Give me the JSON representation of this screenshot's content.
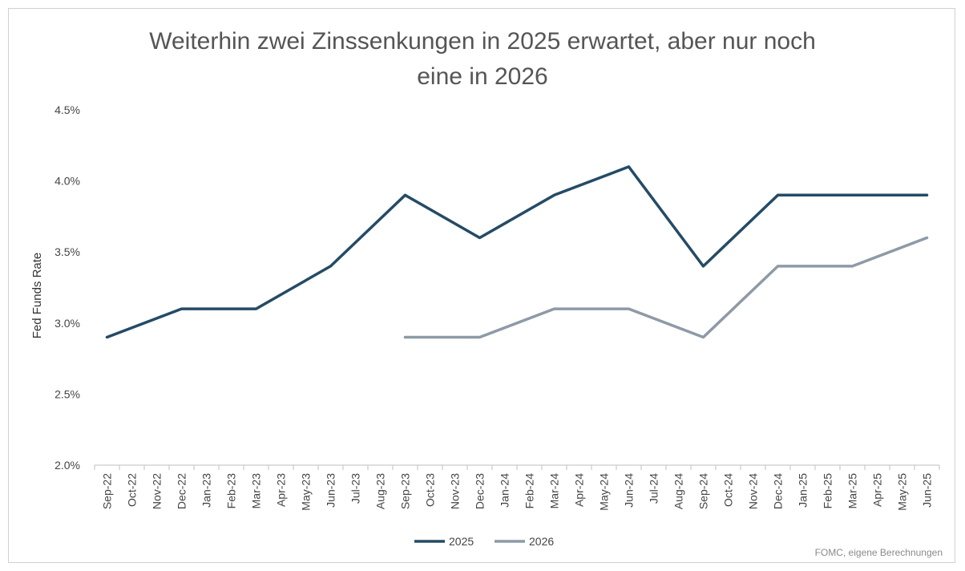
{
  "chart_data": {
    "type": "line",
    "title_lines": [
      "Weiterhin zwei Zinssenkungen in 2025 erwartet, aber nur noch",
      "eine in 2026"
    ],
    "ylabel": "Fed Funds Rate",
    "xlabel": "",
    "ylim": [
      2.0,
      4.5
    ],
    "yticks": [
      2.0,
      2.5,
      3.0,
      3.5,
      4.0,
      4.5
    ],
    "ytick_labels": [
      "2.0%",
      "2.5%",
      "3.0%",
      "3.5%",
      "4.0%",
      "4.5%"
    ],
    "categories": [
      "Sep-22",
      "Oct-22",
      "Nov-22",
      "Dec-22",
      "Jan-23",
      "Feb-23",
      "Mar-23",
      "Apr-23",
      "May-23",
      "Jun-23",
      "Jul-23",
      "Aug-23",
      "Sep-23",
      "Oct-23",
      "Nov-23",
      "Dec-23",
      "Jan-24",
      "Feb-24",
      "Mar-24",
      "Apr-24",
      "May-24",
      "Jun-24",
      "Jul-24",
      "Aug-24",
      "Sep-24",
      "Oct-24",
      "Nov-24",
      "Dec-24",
      "Jan-25",
      "Feb-25",
      "Mar-25",
      "Apr-25",
      "May-25",
      "Jun-25"
    ],
    "series": [
      {
        "name": "2025",
        "color": "#244b66",
        "points": [
          {
            "x": "Sep-22",
            "y": 2.9
          },
          {
            "x": "Dec-22",
            "y": 3.1
          },
          {
            "x": "Mar-23",
            "y": 3.1
          },
          {
            "x": "Jun-23",
            "y": 3.4
          },
          {
            "x": "Sep-23",
            "y": 3.9
          },
          {
            "x": "Dec-23",
            "y": 3.6
          },
          {
            "x": "Mar-24",
            "y": 3.9
          },
          {
            "x": "Jun-24",
            "y": 4.1
          },
          {
            "x": "Sep-24",
            "y": 3.4
          },
          {
            "x": "Dec-24",
            "y": 3.9
          },
          {
            "x": "Mar-25",
            "y": 3.9
          },
          {
            "x": "Jun-25",
            "y": 3.9
          }
        ]
      },
      {
        "name": "2026",
        "color": "#8e9aa6",
        "points": [
          {
            "x": "Sep-23",
            "y": 2.9
          },
          {
            "x": "Dec-23",
            "y": 2.9
          },
          {
            "x": "Mar-24",
            "y": 3.1
          },
          {
            "x": "Jun-24",
            "y": 3.1
          },
          {
            "x": "Sep-24",
            "y": 2.9
          },
          {
            "x": "Dec-24",
            "y": 3.4
          },
          {
            "x": "Mar-25",
            "y": 3.4
          },
          {
            "x": "Jun-25",
            "y": 3.6
          }
        ]
      }
    ],
    "legend": "bottom-center",
    "grid": false,
    "source": "FOMC, eigene Berechnungen"
  }
}
